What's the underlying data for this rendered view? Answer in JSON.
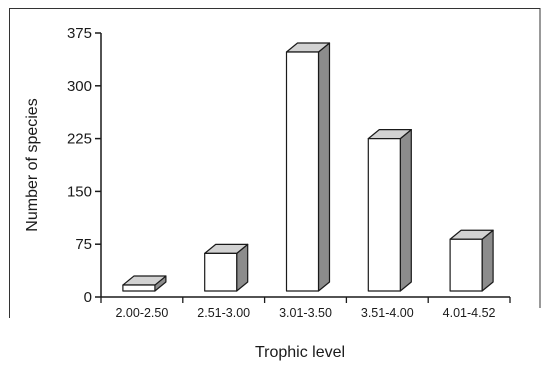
{
  "chart_data": {
    "type": "bar",
    "style": "3d",
    "categories": [
      "2.00-2.50",
      "2.51-3.00",
      "3.01-3.50",
      "3.51-4.00",
      "4.01-4.52"
    ],
    "values": [
      17,
      62,
      348,
      225,
      82
    ],
    "xlabel": "Trophic level",
    "ylabel": "Number of species",
    "ylim": [
      0,
      375
    ],
    "yticks": [
      0,
      75,
      150,
      225,
      300,
      375
    ],
    "grid": false,
    "legend": false,
    "colors": {
      "bar_front": "#ffffff",
      "bar_side": "#8c8c8c",
      "bar_top": "#d2d2d2",
      "outline": "#1a1a1a"
    }
  }
}
